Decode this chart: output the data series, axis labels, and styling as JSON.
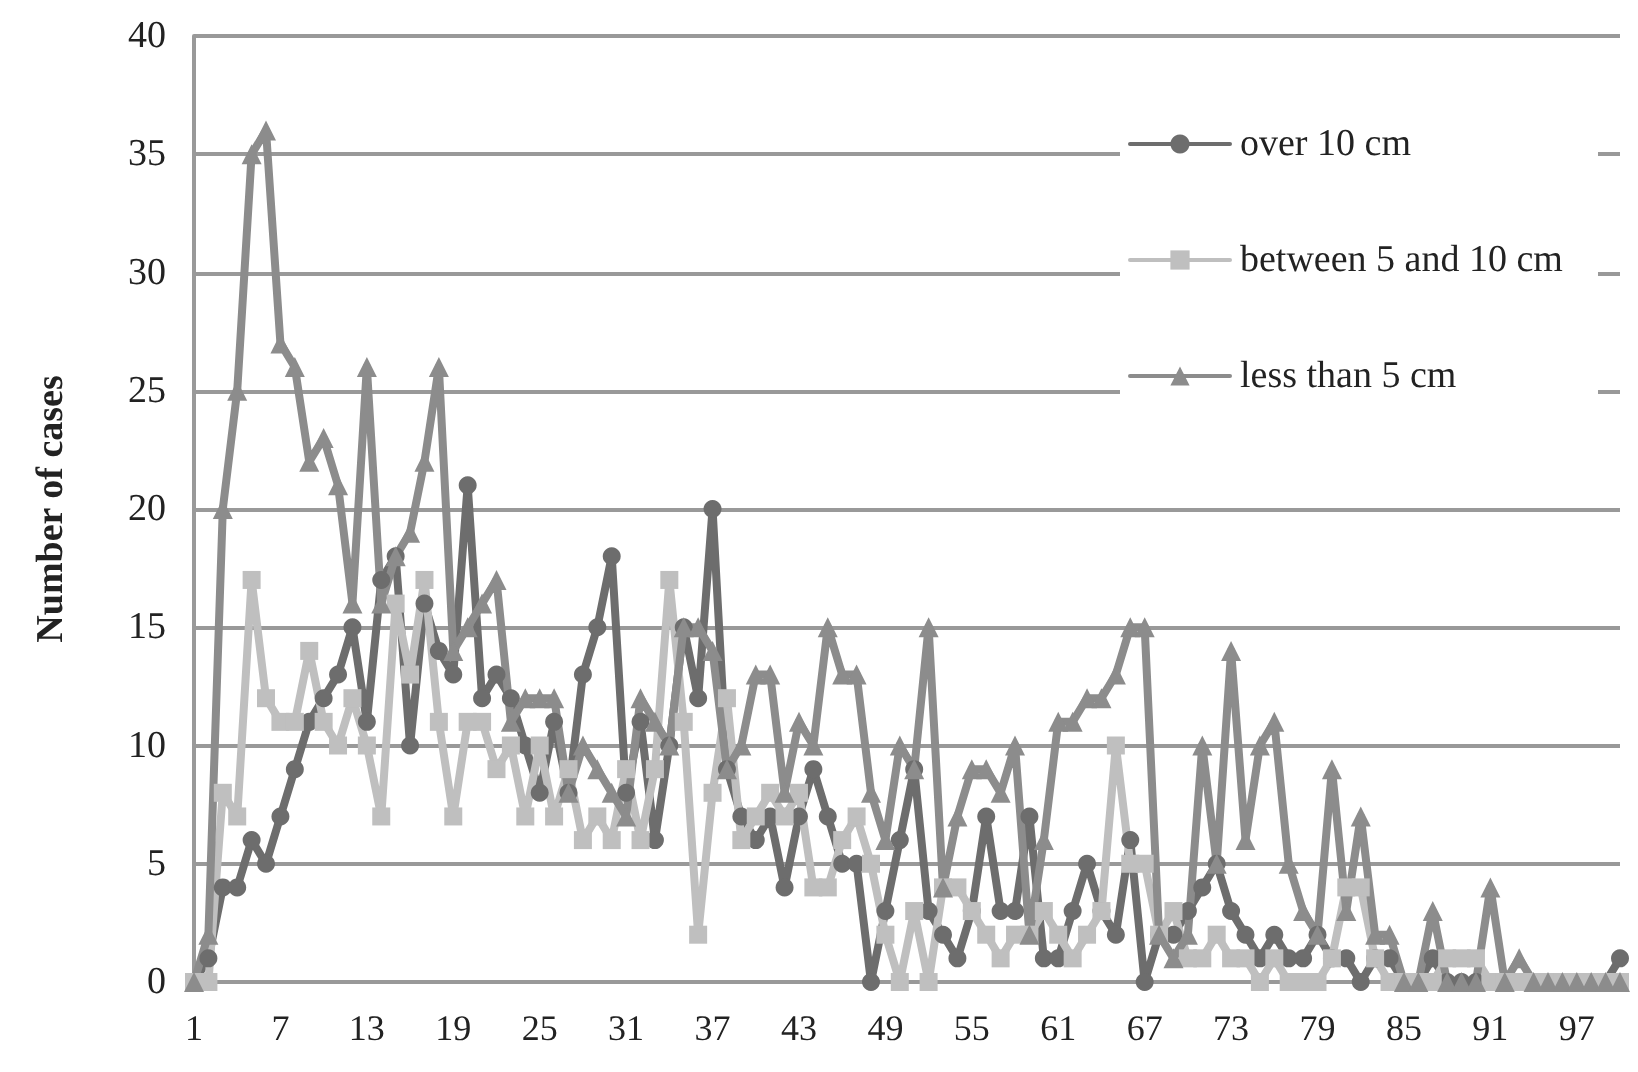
{
  "chart_data": {
    "type": "line",
    "ylabel": "Number of cases",
    "categories": [
      "1",
      null,
      null,
      null,
      null,
      null,
      "7",
      null,
      null,
      null,
      null,
      null,
      "13",
      null,
      null,
      null,
      null,
      null,
      "19",
      null,
      null,
      null,
      null,
      null,
      "25",
      null,
      null,
      null,
      null,
      null,
      "31",
      null,
      null,
      null,
      null,
      null,
      "37",
      null,
      null,
      null,
      null,
      null,
      "43",
      null,
      null,
      null,
      null,
      null,
      "49",
      null,
      null,
      null,
      null,
      null,
      "55",
      null,
      null,
      null,
      null,
      null,
      "61",
      null,
      null,
      null,
      null,
      null,
      "67",
      null,
      null,
      null,
      null,
      null,
      "73",
      null,
      null,
      null,
      null,
      null,
      "79",
      null,
      null,
      null,
      null,
      null,
      "85",
      null,
      null,
      null,
      null,
      null,
      "91",
      null,
      null,
      null,
      null,
      null,
      "97",
      null,
      null,
      null
    ],
    "series": [
      {
        "name": "over 10 cm",
        "color": "#6d6d6d",
        "marker": "circle",
        "values": [
          0,
          1,
          4,
          4,
          6,
          5,
          7,
          9,
          11,
          12,
          13,
          15,
          11,
          17,
          18,
          10,
          16,
          14,
          13,
          21,
          12,
          13,
          12,
          10,
          8,
          11,
          8,
          13,
          15,
          18,
          8,
          11,
          6,
          10,
          15,
          12,
          20,
          9,
          7,
          6,
          7,
          4,
          7,
          9,
          7,
          5,
          5,
          0,
          3,
          6,
          9,
          3,
          2,
          1,
          3,
          7,
          3,
          3,
          7,
          1,
          1,
          3,
          5,
          3,
          2,
          6,
          0,
          2,
          2,
          3,
          4,
          5,
          3,
          2,
          1,
          2,
          1,
          1,
          2,
          1,
          1,
          0,
          1,
          1,
          0,
          0,
          1,
          0,
          0,
          0,
          0,
          0,
          0,
          0,
          0,
          0,
          0,
          0,
          0,
          1
        ]
      },
      {
        "name": "between 5 and 10 cm",
        "color": "#bfbfbf",
        "marker": "square",
        "values": [
          0,
          0,
          8,
          7,
          17,
          12,
          11,
          11,
          14,
          11,
          10,
          12,
          10,
          7,
          16,
          13,
          17,
          11,
          7,
          11,
          11,
          9,
          10,
          7,
          10,
          7,
          9,
          6,
          7,
          6,
          9,
          6,
          9,
          17,
          11,
          2,
          8,
          12,
          6,
          7,
          8,
          7,
          8,
          4,
          4,
          6,
          7,
          5,
          2,
          0,
          3,
          0,
          4,
          4,
          3,
          2,
          1,
          2,
          2,
          3,
          2,
          1,
          2,
          3,
          10,
          5,
          5,
          2,
          3,
          1,
          1,
          2,
          1,
          1,
          0,
          1,
          0,
          0,
          0,
          1,
          4,
          4,
          1,
          0,
          0,
          0,
          0,
          1,
          1,
          1,
          0,
          0,
          0,
          0,
          0,
          0,
          0,
          0,
          0,
          0
        ]
      },
      {
        "name": "less than 5 cm",
        "color": "#8c8c8c",
        "marker": "triangle",
        "values": [
          0,
          2,
          20,
          25,
          35,
          36,
          27,
          26,
          22,
          23,
          21,
          16,
          26,
          16,
          18,
          19,
          22,
          26,
          14,
          15,
          16,
          17,
          11,
          12,
          12,
          12,
          8,
          10,
          9,
          8,
          7,
          12,
          11,
          10,
          15,
          15,
          14,
          9,
          10,
          13,
          13,
          8,
          11,
          10,
          15,
          13,
          13,
          8,
          6,
          10,
          9,
          15,
          4,
          7,
          9,
          9,
          8,
          10,
          2,
          6,
          11,
          11,
          12,
          12,
          13,
          15,
          15,
          2,
          1,
          2,
          10,
          5,
          14,
          6,
          10,
          11,
          5,
          3,
          2,
          9,
          3,
          7,
          2,
          2,
          0,
          0,
          3,
          0,
          0,
          0,
          4,
          0,
          1,
          0,
          0,
          0,
          0,
          0,
          0,
          0
        ]
      }
    ],
    "ylim": [
      0,
      40
    ],
    "yticks": [
      0,
      5,
      10,
      15,
      20,
      25,
      30,
      35,
      40
    ],
    "grid": "y",
    "legend": "top right",
    "line_style": "solid"
  }
}
